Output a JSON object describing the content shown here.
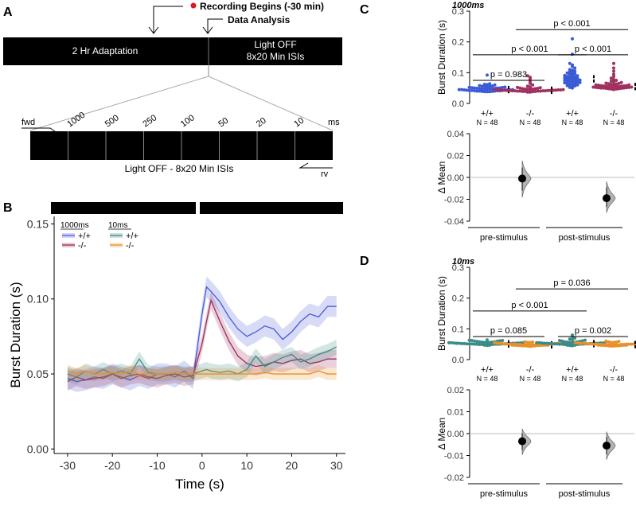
{
  "panels": {
    "A": {
      "letter": "A",
      "recording_label": "Recording Begins (-30 min)",
      "analysis_label": "Data Analysis",
      "adaptation_label": "2 Hr Adaptation",
      "light_off_line1": "Light OFF",
      "light_off_line2": "8x20 Min ISIs",
      "isi_labels": [
        "1000",
        "500",
        "250",
        "100",
        "50",
        "20",
        "10"
      ],
      "ms_label": "ms",
      "fwd_label": "fwd",
      "rv_label": "rv",
      "bottom_caption": "Light OFF - 8x20 Min ISIs",
      "colors": {
        "bar": "#000000",
        "recording_dot": "#e0141b"
      }
    },
    "B": {
      "letter": "B"
    },
    "C": {
      "letter": "C"
    },
    "D": {
      "letter": "D"
    }
  },
  "chart_data": [
    {
      "panel": "B",
      "type": "line",
      "xlabel": "Time (s)",
      "ylabel": "Burst Duration (s)",
      "xlim": [
        -33,
        32
      ],
      "ylim": [
        -0.003,
        0.155
      ],
      "xticks": [
        -30,
        -20,
        -10,
        0,
        10,
        20,
        30
      ],
      "yticks": [
        0.0,
        0.05,
        0.1,
        0.15
      ],
      "ytick_labels": [
        "0.00",
        "0.05",
        "0.10",
        "0.15"
      ],
      "legend_groups": [
        {
          "title": "1000ms",
          "entries": [
            "+/+",
            "-/-"
          ]
        },
        {
          "title": "10ms",
          "entries": [
            "+/+",
            "-/-"
          ]
        }
      ],
      "legend_position": "top-left",
      "x": [
        -30,
        -28,
        -26,
        -24,
        -22,
        -20,
        -18,
        -16,
        -14,
        -12,
        -10,
        -8,
        -6,
        -4,
        -2,
        0,
        1,
        2,
        4,
        6,
        8,
        10,
        12,
        14,
        16,
        18,
        20,
        22,
        24,
        26,
        28,
        30
      ],
      "series": [
        {
          "name": "+/+",
          "group": "1000ms",
          "color": "#4a5bd6",
          "band": 0.007,
          "values": [
            0.047,
            0.045,
            0.046,
            0.048,
            0.047,
            0.05,
            0.048,
            0.046,
            0.049,
            0.047,
            0.05,
            0.05,
            0.048,
            0.052,
            0.047,
            0.09,
            0.108,
            0.105,
            0.098,
            0.088,
            0.08,
            0.075,
            0.078,
            0.082,
            0.08,
            0.073,
            0.078,
            0.085,
            0.09,
            0.088,
            0.095,
            0.095
          ]
        },
        {
          "name": "-/-",
          "group": "1000ms",
          "color": "#9a2a5a",
          "band": 0.006,
          "values": [
            0.045,
            0.048,
            0.046,
            0.047,
            0.048,
            0.05,
            0.047,
            0.049,
            0.05,
            0.048,
            0.047,
            0.049,
            0.05,
            0.048,
            0.049,
            0.07,
            0.085,
            0.099,
            0.085,
            0.072,
            0.062,
            0.057,
            0.055,
            0.056,
            0.058,
            0.057,
            0.059,
            0.06,
            0.057,
            0.058,
            0.06,
            0.06
          ]
        },
        {
          "name": "+/+",
          "group": "10ms",
          "color": "#3a8a86",
          "band": 0.005,
          "values": [
            0.05,
            0.048,
            0.052,
            0.05,
            0.053,
            0.05,
            0.052,
            0.05,
            0.06,
            0.051,
            0.05,
            0.05,
            0.051,
            0.05,
            0.05,
            0.052,
            0.053,
            0.052,
            0.051,
            0.052,
            0.05,
            0.053,
            0.062,
            0.055,
            0.058,
            0.061,
            0.063,
            0.058,
            0.06,
            0.063,
            0.065,
            0.068
          ]
        },
        {
          "name": "-/-",
          "group": "10ms",
          "color": "#e8902a",
          "band": 0.004,
          "values": [
            0.052,
            0.05,
            0.052,
            0.05,
            0.05,
            0.051,
            0.05,
            0.052,
            0.05,
            0.05,
            0.05,
            0.05,
            0.051,
            0.05,
            0.05,
            0.05,
            0.05,
            0.05,
            0.05,
            0.05,
            0.05,
            0.05,
            0.05,
            0.051,
            0.05,
            0.05,
            0.05,
            0.05,
            0.05,
            0.052,
            0.05,
            0.05
          ]
        }
      ],
      "header_bar_color": "#000000"
    },
    {
      "panel": "C",
      "type": "scatter",
      "subtitle": "1000ms",
      "ylabel": "Burst Duration (s)",
      "ylim": [
        0,
        0.3
      ],
      "yticks": [
        0.0,
        0.1,
        0.2,
        0.3
      ],
      "ytick_labels": [
        "0.0",
        "0.1",
        "0.2",
        "0.3"
      ],
      "groups": [
        {
          "genotype": "+/+",
          "n_label": "N = 48",
          "color": "#3a5bd6",
          "median": 0.045,
          "values": [
            0.038,
            0.038,
            0.038,
            0.039,
            0.039,
            0.04,
            0.04,
            0.04,
            0.041,
            0.041,
            0.041,
            0.042,
            0.042,
            0.042,
            0.043,
            0.043,
            0.044,
            0.044,
            0.044,
            0.045,
            0.045,
            0.045,
            0.046,
            0.046,
            0.047,
            0.047,
            0.048,
            0.048,
            0.049,
            0.049,
            0.05,
            0.05,
            0.05,
            0.051,
            0.052,
            0.052,
            0.053,
            0.054,
            0.055,
            0.055,
            0.056,
            0.057,
            0.058,
            0.06,
            0.061,
            0.062,
            0.064,
            0.092
          ]
        },
        {
          "genotype": "-/-",
          "n_label": "N = 48",
          "color": "#a0305f",
          "median": 0.043,
          "values": [
            0.037,
            0.037,
            0.038,
            0.038,
            0.038,
            0.039,
            0.039,
            0.039,
            0.04,
            0.04,
            0.04,
            0.04,
            0.041,
            0.041,
            0.041,
            0.041,
            0.042,
            0.042,
            0.042,
            0.042,
            0.043,
            0.043,
            0.043,
            0.043,
            0.044,
            0.044,
            0.044,
            0.045,
            0.045,
            0.045,
            0.046,
            0.046,
            0.047,
            0.047,
            0.048,
            0.048,
            0.049,
            0.05,
            0.051,
            0.052,
            0.054,
            0.056,
            0.06,
            0.065,
            0.07,
            0.08,
            0.085,
            0.09
          ]
        },
        {
          "genotype": "+/+",
          "n_label": "N = 48",
          "color": "#3a5bd6",
          "median": 0.08,
          "values": [
            0.05,
            0.052,
            0.054,
            0.055,
            0.057,
            0.058,
            0.06,
            0.061,
            0.063,
            0.064,
            0.065,
            0.066,
            0.067,
            0.068,
            0.07,
            0.071,
            0.072,
            0.073,
            0.074,
            0.075,
            0.076,
            0.078,
            0.079,
            0.08,
            0.081,
            0.082,
            0.083,
            0.085,
            0.086,
            0.087,
            0.088,
            0.09,
            0.091,
            0.093,
            0.095,
            0.097,
            0.099,
            0.1,
            0.103,
            0.105,
            0.108,
            0.11,
            0.115,
            0.12,
            0.125,
            0.13,
            0.16,
            0.21
          ]
        },
        {
          "genotype": "-/-",
          "n_label": "N = 48",
          "color": "#a0305f",
          "median": 0.055,
          "values": [
            0.045,
            0.046,
            0.047,
            0.047,
            0.048,
            0.048,
            0.049,
            0.049,
            0.05,
            0.05,
            0.05,
            0.051,
            0.051,
            0.052,
            0.052,
            0.053,
            0.053,
            0.054,
            0.054,
            0.055,
            0.055,
            0.055,
            0.056,
            0.056,
            0.057,
            0.057,
            0.058,
            0.058,
            0.059,
            0.06,
            0.06,
            0.061,
            0.062,
            0.063,
            0.064,
            0.065,
            0.066,
            0.068,
            0.07,
            0.072,
            0.075,
            0.078,
            0.082,
            0.088,
            0.095,
            0.105,
            0.115,
            0.13
          ]
        }
      ],
      "comparisons": [
        {
          "label": "p = 0.983",
          "from": 0,
          "to": 1,
          "y": 0.075
        },
        {
          "label": "p < 0.001",
          "from": 0,
          "to": 2,
          "y": 0.158
        },
        {
          "label": "p < 0.001",
          "from": 2,
          "to": 3,
          "y": 0.158
        },
        {
          "label": "p < 0.001",
          "from": 1,
          "to": 3,
          "y": 0.24
        }
      ],
      "delta": {
        "ylabel": "Δ Mean",
        "ylim": [
          -0.04,
          0.04
        ],
        "yticks": [
          -0.04,
          -0.02,
          0.0,
          0.02,
          0.04
        ],
        "ytick_labels": [
          "-0.04",
          "-0.02",
          "0.00",
          "0.02",
          "0.04"
        ],
        "categories": [
          "pre-stimulus",
          "post-stimulus"
        ],
        "means": [
          -0.001,
          -0.019
        ],
        "ci": [
          [
            -0.012,
            0.009
          ],
          [
            -0.027,
            -0.009
          ]
        ]
      }
    },
    {
      "panel": "D",
      "type": "scatter",
      "subtitle": "10ms",
      "ylabel": "Burst Duration (s)",
      "ylim": [
        0,
        0.3
      ],
      "yticks": [
        0.0,
        0.1,
        0.2,
        0.3
      ],
      "ytick_labels": [
        "0.0",
        "0.1",
        "0.2",
        "0.3"
      ],
      "groups": [
        {
          "genotype": "+/+",
          "n_label": "N = 48",
          "color": "#3a8a86",
          "median": 0.051,
          "values": [
            0.046,
            0.047,
            0.047,
            0.048,
            0.048,
            0.048,
            0.049,
            0.049,
            0.049,
            0.05,
            0.05,
            0.05,
            0.05,
            0.05,
            0.051,
            0.051,
            0.051,
            0.051,
            0.051,
            0.052,
            0.052,
            0.052,
            0.052,
            0.053,
            0.053,
            0.053,
            0.053,
            0.054,
            0.054,
            0.054,
            0.055,
            0.055,
            0.055,
            0.056,
            0.056,
            0.056,
            0.057,
            0.057,
            0.058,
            0.058,
            0.059,
            0.06,
            0.06,
            0.061,
            0.062,
            0.062,
            0.063,
            0.064
          ]
        },
        {
          "genotype": "-/-",
          "n_label": "N = 48",
          "color": "#e8902a",
          "median": 0.048,
          "values": [
            0.043,
            0.044,
            0.044,
            0.045,
            0.045,
            0.045,
            0.046,
            0.046,
            0.046,
            0.046,
            0.047,
            0.047,
            0.047,
            0.047,
            0.047,
            0.048,
            0.048,
            0.048,
            0.048,
            0.048,
            0.048,
            0.049,
            0.049,
            0.049,
            0.049,
            0.049,
            0.05,
            0.05,
            0.05,
            0.05,
            0.05,
            0.051,
            0.051,
            0.051,
            0.051,
            0.052,
            0.052,
            0.052,
            0.053,
            0.053,
            0.054,
            0.054,
            0.055,
            0.055,
            0.056,
            0.056,
            0.057,
            0.058
          ]
        },
        {
          "genotype": "+/+",
          "n_label": "N = 48",
          "color": "#3a8a86",
          "median": 0.052,
          "values": [
            0.045,
            0.046,
            0.047,
            0.047,
            0.048,
            0.048,
            0.048,
            0.049,
            0.049,
            0.049,
            0.05,
            0.05,
            0.05,
            0.05,
            0.051,
            0.051,
            0.051,
            0.051,
            0.052,
            0.052,
            0.052,
            0.052,
            0.053,
            0.053,
            0.053,
            0.053,
            0.054,
            0.054,
            0.054,
            0.055,
            0.055,
            0.055,
            0.056,
            0.056,
            0.057,
            0.057,
            0.058,
            0.058,
            0.059,
            0.06,
            0.061,
            0.062,
            0.063,
            0.065,
            0.067,
            0.07,
            0.075,
            0.08
          ]
        },
        {
          "genotype": "-/-",
          "n_label": "N = 48",
          "color": "#e8902a",
          "median": 0.049,
          "values": [
            0.044,
            0.044,
            0.045,
            0.045,
            0.045,
            0.046,
            0.046,
            0.046,
            0.047,
            0.047,
            0.047,
            0.047,
            0.048,
            0.048,
            0.048,
            0.048,
            0.048,
            0.049,
            0.049,
            0.049,
            0.049,
            0.049,
            0.05,
            0.05,
            0.05,
            0.05,
            0.05,
            0.05,
            0.051,
            0.051,
            0.051,
            0.051,
            0.052,
            0.052,
            0.052,
            0.053,
            0.053,
            0.053,
            0.054,
            0.054,
            0.055,
            0.055,
            0.056,
            0.056,
            0.057,
            0.058,
            0.059,
            0.06
          ]
        }
      ],
      "comparisons": [
        {
          "label": "p = 0.085",
          "from": 0,
          "to": 1,
          "y": 0.075
        },
        {
          "label": "p < 0.001",
          "from": 0,
          "to": 2,
          "y": 0.158
        },
        {
          "label": "p = 0.002",
          "from": 2,
          "to": 3,
          "y": 0.075
        },
        {
          "label": "p = 0.036",
          "from": 1,
          "to": 3,
          "y": 0.23
        }
      ],
      "delta": {
        "ylabel": "Δ Mean",
        "ylim": [
          -0.02,
          0.02
        ],
        "yticks": [
          -0.02,
          -0.01,
          0.0,
          0.01,
          0.02
        ],
        "ytick_labels": [
          "-0.02",
          "-0.01",
          "0.00",
          "0.01",
          "0.02"
        ],
        "categories": [
          "pre-stimulus",
          "post-stimulus"
        ],
        "means": [
          -0.0035,
          -0.0055
        ],
        "ci": [
          [
            -0.0075,
            0.0
          ],
          [
            -0.0095,
            -0.0015
          ]
        ]
      }
    }
  ]
}
